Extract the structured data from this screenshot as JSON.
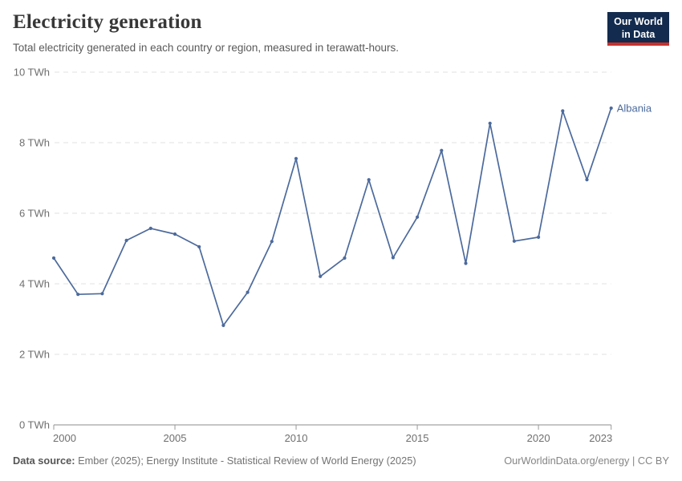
{
  "header": {
    "title": "Electricity generation",
    "subtitle": "Total electricity generated in each country or region, measured in terawatt-hours.",
    "logo_line1": "Our World",
    "logo_line2": "in Data"
  },
  "chart_data": {
    "type": "line",
    "title": "Electricity generation",
    "unit": "TWh",
    "x": [
      2000,
      2001,
      2002,
      2003,
      2004,
      2005,
      2006,
      2007,
      2008,
      2009,
      2010,
      2011,
      2012,
      2013,
      2014,
      2015,
      2016,
      2017,
      2018,
      2019,
      2020,
      2021,
      2022,
      2023
    ],
    "series": [
      {
        "name": "Albania",
        "color": "#4c6a9c",
        "values": [
          4.73,
          3.7,
          3.72,
          5.23,
          5.57,
          5.41,
          5.05,
          2.82,
          3.76,
          5.2,
          7.55,
          4.21,
          4.73,
          6.95,
          4.74,
          5.89,
          7.78,
          4.58,
          8.55,
          5.21,
          5.32,
          8.9,
          6.95,
          8.98
        ]
      }
    ],
    "xlim": [
      2000,
      2023
    ],
    "ylim": [
      0,
      10
    ],
    "x_ticks": [
      2000,
      2005,
      2010,
      2015,
      2020,
      2023
    ],
    "y_ticks": [
      0,
      2,
      4,
      6,
      8,
      10
    ],
    "y_tick_suffix": " TWh",
    "grid": "horizontal-dashed",
    "legend_position": "end-of-line"
  },
  "footer": {
    "source_label": "Data source:",
    "source_text": " Ember (2025); Energy Institute - Statistical Review of World Energy (2025)",
    "credit": "OurWorldinData.org/energy | CC BY"
  },
  "colors": {
    "accent_line": "#4c6a9c",
    "logo_navy": "#122b4e",
    "logo_red": "#c9302c",
    "grid": "#e2e2e2",
    "axis": "#8c8c8c",
    "tick_label": "#6f6f6f"
  }
}
